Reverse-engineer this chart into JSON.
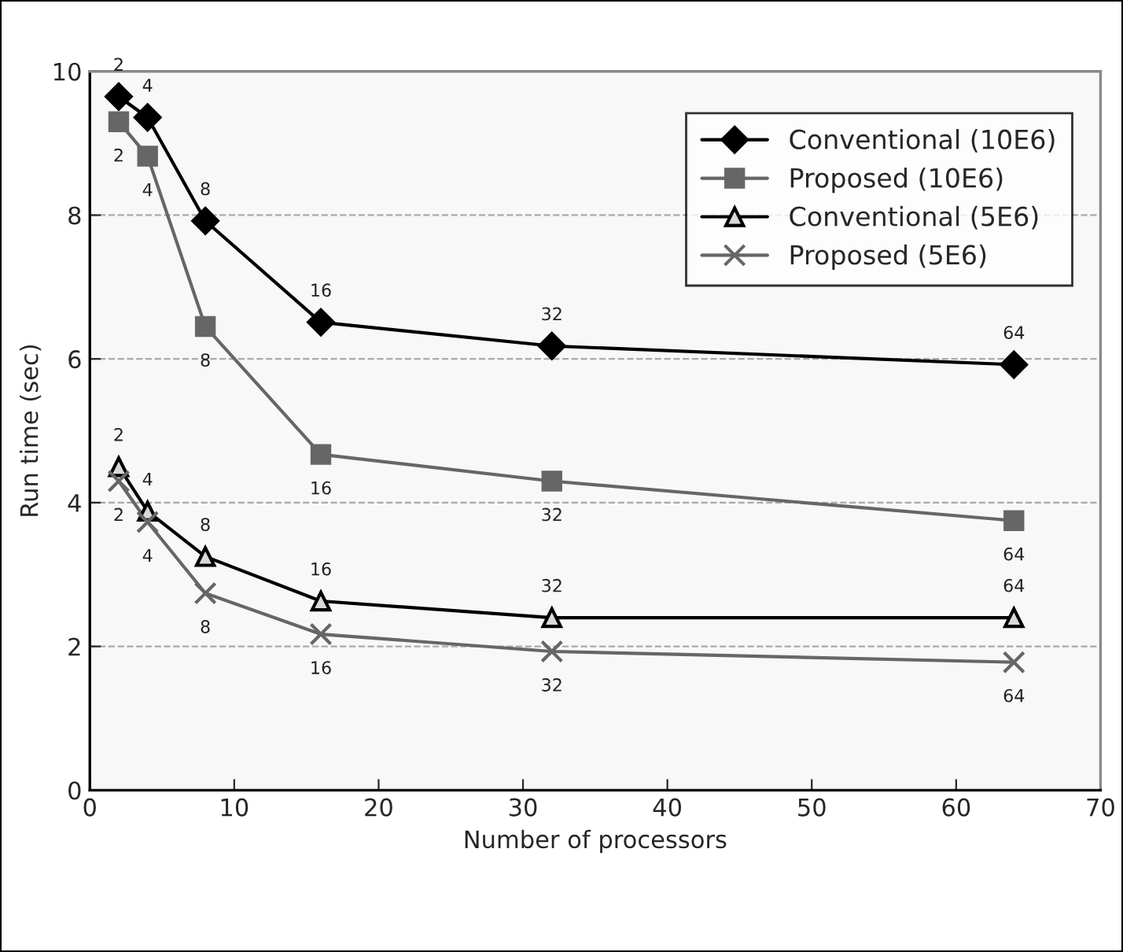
{
  "chart_data": {
    "type": "line",
    "xlabel": "Number of processors",
    "ylabel": "Run time (sec)",
    "xlim": [
      0,
      70
    ],
    "xticks": [
      0,
      10,
      20,
      30,
      40,
      50,
      60,
      70
    ],
    "ylim": [
      0,
      10
    ],
    "yticks": [
      0,
      2,
      4,
      6,
      8,
      10
    ],
    "grid": "y",
    "legend": "top right",
    "line_style": "solid",
    "x": [
      2,
      4,
      8,
      16,
      32,
      64
    ],
    "series": [
      {
        "name": "Conventional (10E6)",
        "color": "#000000",
        "marker": "diamond",
        "values": [
          9.65,
          9.36,
          7.92,
          6.51,
          6.18,
          5.92
        ]
      },
      {
        "name": "Proposed (10E6)",
        "color": "#666666",
        "marker": "square",
        "values": [
          9.3,
          8.82,
          6.45,
          4.67,
          4.3,
          3.75
        ]
      },
      {
        "name": "Conventional (5E6)",
        "color": "#000000",
        "marker": "triangle",
        "values": [
          4.5,
          3.88,
          3.25,
          2.63,
          2.4,
          2.4
        ]
      },
      {
        "name": "Proposed (5E6)",
        "color": "#666666",
        "marker": "cross",
        "values": [
          4.3,
          3.73,
          2.74,
          2.17,
          1.93,
          1.78
        ]
      }
    ],
    "annotations": [
      {
        "text": "2",
        "x": 2,
        "y": 9.65
      },
      {
        "text": "4",
        "x": 4,
        "y": 9.36
      },
      {
        "text": "8",
        "x": 8,
        "y": 7.92
      },
      {
        "text": "16",
        "x": 16,
        "y": 6.51
      },
      {
        "text": "32",
        "x": 32,
        "y": 6.18
      },
      {
        "text": "64",
        "x": 64,
        "y": 5.92
      },
      {
        "text": "2",
        "x": 2,
        "y": 9.3
      },
      {
        "text": "4",
        "x": 4,
        "y": 8.82
      },
      {
        "text": "8",
        "x": 8,
        "y": 6.45
      },
      {
        "text": "16",
        "x": 16,
        "y": 4.67
      },
      {
        "text": "32",
        "x": 32,
        "y": 4.3
      },
      {
        "text": "64",
        "x": 64,
        "y": 3.75
      },
      {
        "text": "2",
        "x": 2,
        "y": 4.5
      },
      {
        "text": "4",
        "x": 4,
        "y": 3.88
      },
      {
        "text": "8",
        "x": 8,
        "y": 3.25
      },
      {
        "text": "16",
        "x": 16,
        "y": 2.63
      },
      {
        "text": "32",
        "x": 32,
        "y": 2.4
      },
      {
        "text": "64",
        "x": 64,
        "y": 2.4
      },
      {
        "text": "2",
        "x": 2,
        "y": 4.3
      },
      {
        "text": "4",
        "x": 4,
        "y": 3.73
      },
      {
        "text": "8",
        "x": 8,
        "y": 2.74
      },
      {
        "text": "16",
        "x": 16,
        "y": 2.17
      },
      {
        "text": "32",
        "x": 32,
        "y": 1.93
      },
      {
        "text": "64",
        "x": 64,
        "y": 1.78
      }
    ]
  }
}
